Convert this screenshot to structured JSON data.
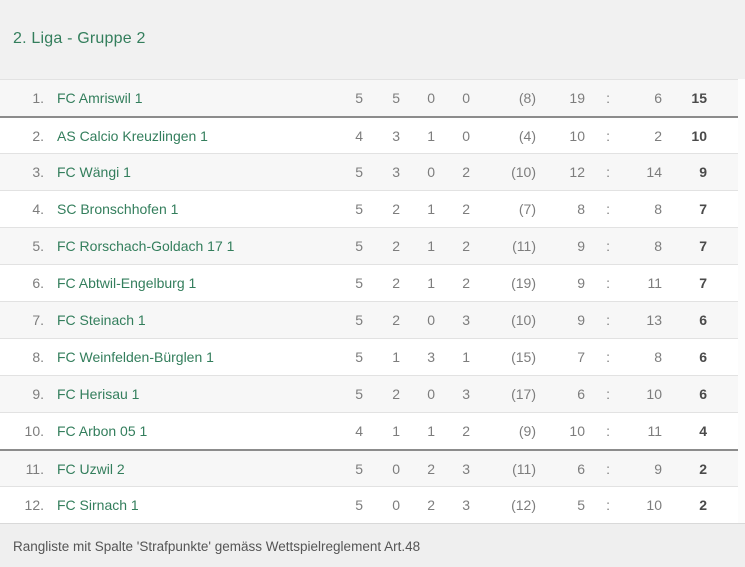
{
  "header": {
    "title": "2. Liga - Gruppe 2"
  },
  "colors": {
    "accent_green": "#337e5c",
    "stat_gray": "#7d7d7d",
    "points_dark": "#4a4a4a",
    "divider_dark": "#8c8c8c",
    "row_alt_bg": "#f7f7f7"
  },
  "table": {
    "colon": ":",
    "rows": [
      {
        "pos": "1.",
        "name": "FC Amriswil 1",
        "games": "5",
        "wins": "5",
        "draws": "0",
        "losses": "0",
        "penalty": "(8)",
        "goals_for": "19",
        "goals_against": "6",
        "points": "15",
        "divider_before": false
      },
      {
        "pos": "2.",
        "name": "AS Calcio Kreuzlingen 1",
        "games": "4",
        "wins": "3",
        "draws": "1",
        "losses": "0",
        "penalty": "(4)",
        "goals_for": "10",
        "goals_against": "2",
        "points": "10",
        "divider_before": true
      },
      {
        "pos": "3.",
        "name": "FC Wängi 1",
        "games": "5",
        "wins": "3",
        "draws": "0",
        "losses": "2",
        "penalty": "(10)",
        "goals_for": "12",
        "goals_against": "14",
        "points": "9",
        "divider_before": false
      },
      {
        "pos": "4.",
        "name": "SC Bronschhofen 1",
        "games": "5",
        "wins": "2",
        "draws": "1",
        "losses": "2",
        "penalty": "(7)",
        "goals_for": "8",
        "goals_against": "8",
        "points": "7",
        "divider_before": false
      },
      {
        "pos": "5.",
        "name": "FC Rorschach-Goldach 17 1",
        "games": "5",
        "wins": "2",
        "draws": "1",
        "losses": "2",
        "penalty": "(11)",
        "goals_for": "9",
        "goals_against": "8",
        "points": "7",
        "divider_before": false
      },
      {
        "pos": "6.",
        "name": "FC Abtwil-Engelburg 1",
        "games": "5",
        "wins": "2",
        "draws": "1",
        "losses": "2",
        "penalty": "(19)",
        "goals_for": "9",
        "goals_against": "11",
        "points": "7",
        "divider_before": false
      },
      {
        "pos": "7.",
        "name": "FC Steinach 1",
        "games": "5",
        "wins": "2",
        "draws": "0",
        "losses": "3",
        "penalty": "(10)",
        "goals_for": "9",
        "goals_against": "13",
        "points": "6",
        "divider_before": false
      },
      {
        "pos": "8.",
        "name": "FC Weinfelden-Bürglen 1",
        "games": "5",
        "wins": "1",
        "draws": "3",
        "losses": "1",
        "penalty": "(15)",
        "goals_for": "7",
        "goals_against": "8",
        "points": "6",
        "divider_before": false
      },
      {
        "pos": "9.",
        "name": "FC Herisau 1",
        "games": "5",
        "wins": "2",
        "draws": "0",
        "losses": "3",
        "penalty": "(17)",
        "goals_for": "6",
        "goals_against": "10",
        "points": "6",
        "divider_before": false
      },
      {
        "pos": "10.",
        "name": "FC Arbon 05 1",
        "games": "4",
        "wins": "1",
        "draws": "1",
        "losses": "2",
        "penalty": "(9)",
        "goals_for": "10",
        "goals_against": "11",
        "points": "4",
        "divider_before": false
      },
      {
        "pos": "11.",
        "name": "FC Uzwil 2",
        "games": "5",
        "wins": "0",
        "draws": "2",
        "losses": "3",
        "penalty": "(11)",
        "goals_for": "6",
        "goals_against": "9",
        "points": "2",
        "divider_before": true
      },
      {
        "pos": "12.",
        "name": "FC Sirnach 1",
        "games": "5",
        "wins": "0",
        "draws": "2",
        "losses": "3",
        "penalty": "(12)",
        "goals_for": "5",
        "goals_against": "10",
        "points": "2",
        "divider_before": false
      }
    ]
  },
  "footer": {
    "note": "Rangliste mit Spalte 'Strafpunkte' gemäss Wettspielreglement Art.48"
  }
}
